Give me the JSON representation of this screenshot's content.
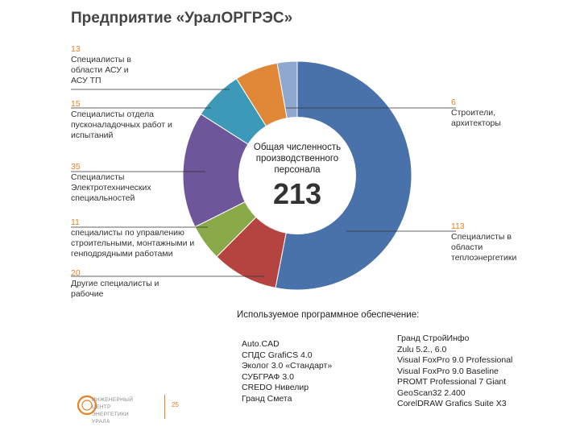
{
  "title": "Предприятие «УралОРГРЭС»",
  "chart_data": {
    "type": "pie",
    "center_label": "Общая численность производственного персонала",
    "total": "213",
    "slices": [
      {
        "value": 113,
        "label": "Специалисты в области теплоэнергетики",
        "color": "#4a72aa"
      },
      {
        "value": 20,
        "label": "Другие специалисты и рабочие",
        "color": "#b54440"
      },
      {
        "value": 11,
        "label": "специалисты по управлению строительными, монтажными и генподрядными работами",
        "color": "#8aaa4a"
      },
      {
        "value": 35,
        "label": "Специалисты Электротехнических специальностей",
        "color": "#6d569a"
      },
      {
        "value": 15,
        "label": "Специалисты отдела пусконаладочных работ и испытаний",
        "color": "#3c9ab8"
      },
      {
        "value": 13,
        "label": "Специалисты в области АСУ и АСУ ТП",
        "color": "#e08838"
      },
      {
        "value": 6,
        "label": "Строители, архитекторы",
        "color": "#8fa8d0"
      }
    ]
  },
  "labels": {
    "asu": {
      "num": "13",
      "text": "Специалисты в области АСУ и АСУ ТП"
    },
    "pnr": {
      "num": "15",
      "text": "Специалисты отдела пусконаладочных работ и испытаний"
    },
    "electro": {
      "num": "35",
      "text": "Специалисты Электротехнических специальностей"
    },
    "mgmt": {
      "num": "11",
      "text": "специалисты по управлению строительными, монтажными и генподрядными работами"
    },
    "other": {
      "num": "20",
      "text": "Другие специалисты и рабочие"
    },
    "builders": {
      "num": "6",
      "text": "Строители, архитекторы"
    },
    "heat": {
      "num": "113",
      "text": "Специалисты в области теплоэнергетики"
    }
  },
  "software": {
    "title": "Используемое программное обеспечение:",
    "col1": [
      "Auto.CAD",
      "СПДС GrafiCS 4.0",
      "Эколог 3.0 «Стандарт»",
      "СУБГРАФ 3.0",
      "CREDO Нивелир",
      "Гранд Смета"
    ],
    "col2": [
      "Гранд СтройИнфо",
      "Zulu 5.2., 6.0",
      "Visual FoxPro 9.0 Professional",
      "Visual FoxPro 9.0 Baseline",
      "PROMT Professional 7 Giant",
      "GeoScan32 2.400",
      "CorelDRAW Grafics Suite X3"
    ]
  },
  "footer": {
    "logo_text": "ИНЖЕНЕРНЫЙ ЦЕНТР ЭНЕРГЕТИКИ УРАЛА",
    "page": "25"
  }
}
